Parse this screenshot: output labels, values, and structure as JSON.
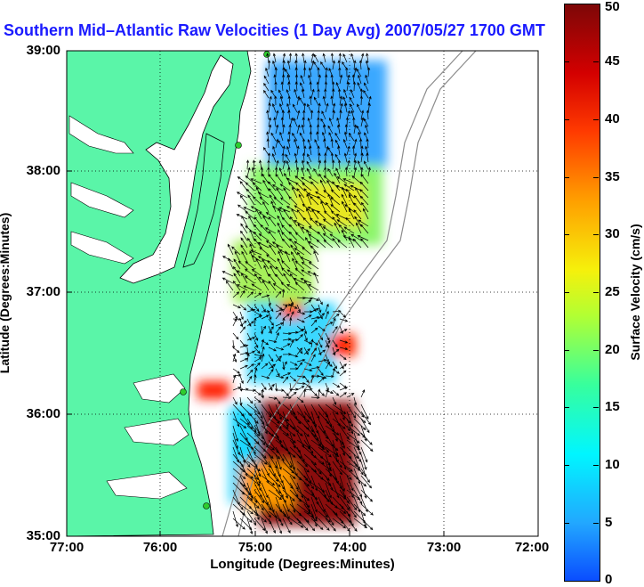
{
  "title": "Southern Mid–Atlantic Raw Velocities (1 Day Avg) 2007/05/27 1700 GMT",
  "xaxis_label": "Longitude (Degrees:Minutes)",
  "yaxis_label": "Latitude (Degrees:Minutes)",
  "colorbar_label": "Surface Velocity (cm/s)",
  "lat_ticks": [
    "39:00",
    "38:00",
    "37:00",
    "36:00",
    "35:00"
  ],
  "lon_ticks": [
    "77:00",
    "76:00",
    "75:00",
    "74:00",
    "73:00",
    "72:00"
  ],
  "colorbar_ticks": [
    "50",
    "45",
    "40",
    "35",
    "30",
    "25",
    "20",
    "15",
    "10",
    "5",
    "0"
  ],
  "colors": {
    "land": "#5af5a8",
    "coast_line": "#000000",
    "bathymetry": "#8c8c8c",
    "grid": "#000000",
    "title": "#1a1aff",
    "station_marker": "#2ecc2e"
  },
  "map": {
    "lon_range": [
      -77,
      -72
    ],
    "lat_range": [
      35,
      39
    ],
    "grid": "dotted",
    "colorbar_range_cm_s": [
      0,
      50
    ]
  },
  "chart_data": {
    "type": "heatmap",
    "xlabel": "Longitude (Degrees:Minutes)",
    "ylabel": "Latitude (Degrees:Minutes)",
    "xlim": [
      -77,
      -72
    ],
    "ylim": [
      35,
      39
    ],
    "colorbar_label": "Surface Velocity (cm/s)",
    "colorbar_range": [
      0,
      50
    ],
    "regions": [
      {
        "lon": [
          -75.1,
          -74.1
        ],
        "lat": [
          38.2,
          39.0
        ],
        "speed_cm_s": 8
      },
      {
        "lon": [
          -75.2,
          -74.3
        ],
        "lat": [
          37.4,
          38.1
        ],
        "speed_cm_s": 22
      },
      {
        "lon": [
          -74.7,
          -74.4
        ],
        "lat": [
          37.3,
          37.6
        ],
        "speed_cm_s": 28
      },
      {
        "lon": [
          -75.3,
          -74.6
        ],
        "lat": [
          37.0,
          37.4
        ],
        "speed_cm_s": 18
      },
      {
        "lon": [
          -75.3,
          -74.8
        ],
        "lat": [
          36.5,
          37.0
        ],
        "speed_cm_s": 12
      },
      {
        "lon": [
          -74.8,
          -74.6
        ],
        "lat": [
          36.75,
          36.9
        ],
        "speed_cm_s": 40
      },
      {
        "lon": [
          -74.7,
          -74.5
        ],
        "lat": [
          36.3,
          36.5
        ],
        "speed_cm_s": 42
      },
      {
        "lon": [
          -75.5,
          -75.2
        ],
        "lat": [
          36.1,
          36.3
        ],
        "speed_cm_s": 42
      },
      {
        "lon": [
          -75.1,
          -74.5
        ],
        "lat": [
          35.3,
          36.2
        ],
        "speed_cm_s": 15
      },
      {
        "lon": [
          -74.8,
          -74.2
        ],
        "lat": [
          35.2,
          36.1
        ],
        "speed_cm_s": 47
      }
    ]
  }
}
